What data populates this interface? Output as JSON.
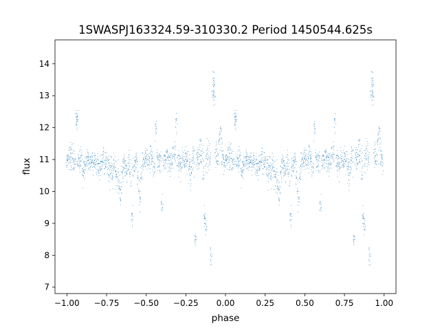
{
  "chart_data": {
    "type": "scatter",
    "title": "1SWASPJ163324.59-310330.2 Period 1450544.625s",
    "xlabel": "phase",
    "ylabel": "flux",
    "xlim": [
      -1.075,
      1.075
    ],
    "ylim": [
      6.8,
      14.75
    ],
    "x_ticks": [
      -1.0,
      -0.75,
      -0.5,
      -0.25,
      0.0,
      0.25,
      0.5,
      0.75,
      1.0
    ],
    "x_tick_labels": [
      "−1.00",
      "−0.75",
      "−0.50",
      "−0.25",
      "0.00",
      "0.25",
      "0.50",
      "0.75",
      "1.00"
    ],
    "y_ticks": [
      7,
      8,
      9,
      10,
      11,
      12,
      13,
      14
    ],
    "y_tick_labels": [
      "7",
      "8",
      "9",
      "10",
      "11",
      "12",
      "13",
      "14"
    ],
    "grid": false,
    "legend": "none",
    "point_color": "#1f77b4",
    "series": [
      {
        "phase_period": 1.0,
        "points": [
          [
            0.0,
            10.95,
            0.35
          ],
          [
            0.01,
            11.0,
            0.35
          ],
          [
            0.02,
            11.05,
            0.4
          ],
          [
            0.03,
            11.1,
            0.45
          ],
          [
            0.04,
            11.0,
            0.4
          ],
          [
            0.05,
            10.9,
            0.35
          ],
          [
            0.06,
            12.2,
            0.3
          ],
          [
            0.065,
            12.3,
            0.2
          ],
          [
            0.07,
            11.0,
            0.3
          ],
          [
            0.08,
            10.9,
            0.3
          ],
          [
            0.09,
            11.1,
            0.35
          ],
          [
            0.1,
            10.6,
            0.3
          ],
          [
            0.11,
            10.8,
            0.3
          ],
          [
            0.12,
            10.9,
            0.25
          ],
          [
            0.13,
            11.0,
            0.3
          ],
          [
            0.14,
            11.0,
            0.3
          ],
          [
            0.15,
            10.9,
            0.25
          ],
          [
            0.16,
            11.0,
            0.25
          ],
          [
            0.17,
            10.8,
            0.3
          ],
          [
            0.18,
            11.0,
            0.3
          ],
          [
            0.19,
            10.9,
            0.35
          ],
          [
            0.2,
            10.7,
            0.35
          ],
          [
            0.21,
            10.8,
            0.35
          ],
          [
            0.22,
            10.9,
            0.3
          ],
          [
            0.23,
            11.0,
            0.3
          ],
          [
            0.24,
            10.8,
            0.3
          ],
          [
            0.25,
            10.9,
            0.35
          ],
          [
            0.26,
            10.7,
            0.4
          ],
          [
            0.27,
            10.6,
            0.5
          ],
          [
            0.28,
            10.8,
            0.4
          ],
          [
            0.29,
            10.5,
            0.4
          ],
          [
            0.3,
            10.9,
            0.35
          ],
          [
            0.31,
            10.6,
            0.45
          ],
          [
            0.32,
            10.4,
            0.5
          ],
          [
            0.33,
            10.2,
            0.4
          ],
          [
            0.34,
            9.9,
            0.3
          ],
          [
            0.35,
            10.6,
            0.45
          ],
          [
            0.36,
            10.9,
            0.35
          ],
          [
            0.37,
            10.8,
            0.3
          ],
          [
            0.38,
            10.7,
            0.3
          ],
          [
            0.39,
            10.9,
            0.3
          ],
          [
            0.4,
            10.6,
            0.35
          ],
          [
            0.41,
            9.2,
            0.25
          ],
          [
            0.42,
            10.8,
            0.3
          ],
          [
            0.43,
            10.9,
            0.3
          ],
          [
            0.44,
            11.0,
            0.3
          ],
          [
            0.45,
            10.3,
            0.3
          ],
          [
            0.46,
            9.8,
            0.35
          ],
          [
            0.47,
            10.5,
            0.35
          ],
          [
            0.48,
            10.9,
            0.3
          ],
          [
            0.49,
            11.0,
            0.3
          ],
          [
            0.5,
            11.1,
            0.35
          ],
          [
            0.51,
            11.0,
            0.3
          ],
          [
            0.52,
            10.9,
            0.3
          ],
          [
            0.53,
            11.2,
            0.4
          ],
          [
            0.54,
            11.0,
            0.35
          ],
          [
            0.55,
            10.8,
            0.3
          ],
          [
            0.56,
            12.0,
            0.3
          ],
          [
            0.57,
            11.0,
            0.3
          ],
          [
            0.58,
            10.9,
            0.3
          ],
          [
            0.59,
            11.0,
            0.35
          ],
          [
            0.6,
            9.6,
            0.25
          ],
          [
            0.61,
            10.9,
            0.3
          ],
          [
            0.62,
            11.0,
            0.3
          ],
          [
            0.63,
            11.2,
            0.35
          ],
          [
            0.64,
            10.9,
            0.3
          ],
          [
            0.65,
            11.0,
            0.3
          ],
          [
            0.66,
            11.0,
            0.35
          ],
          [
            0.67,
            11.1,
            0.35
          ],
          [
            0.68,
            11.3,
            0.35
          ],
          [
            0.69,
            12.2,
            0.35
          ],
          [
            0.7,
            11.0,
            0.35
          ],
          [
            0.71,
            10.9,
            0.3
          ],
          [
            0.72,
            10.8,
            0.35
          ],
          [
            0.73,
            11.0,
            0.35
          ],
          [
            0.74,
            10.9,
            0.3
          ],
          [
            0.75,
            11.0,
            0.35
          ],
          [
            0.76,
            10.9,
            0.35
          ],
          [
            0.77,
            10.7,
            0.4
          ],
          [
            0.78,
            10.6,
            0.4
          ],
          [
            0.79,
            10.9,
            0.45
          ],
          [
            0.8,
            11.0,
            0.45
          ],
          [
            0.81,
            8.5,
            0.2
          ],
          [
            0.82,
            11.1,
            0.4
          ],
          [
            0.83,
            11.0,
            0.45
          ],
          [
            0.84,
            11.3,
            0.45
          ],
          [
            0.85,
            11.2,
            0.5
          ],
          [
            0.86,
            10.8,
            0.5
          ],
          [
            0.87,
            9.2,
            0.3
          ],
          [
            0.875,
            8.9,
            0.25
          ],
          [
            0.88,
            10.9,
            0.4
          ],
          [
            0.89,
            11.2,
            0.45
          ],
          [
            0.9,
            11.1,
            0.45
          ],
          [
            0.91,
            8.0,
            0.25
          ],
          [
            0.92,
            13.0,
            0.35
          ],
          [
            0.925,
            13.5,
            0.25
          ],
          [
            0.93,
            13.1,
            0.3
          ],
          [
            0.94,
            11.2,
            0.45
          ],
          [
            0.95,
            11.0,
            0.4
          ],
          [
            0.96,
            11.5,
            0.45
          ],
          [
            0.97,
            11.8,
            0.35
          ],
          [
            0.98,
            11.2,
            0.4
          ],
          [
            0.99,
            11.0,
            0.4
          ]
        ]
      }
    ]
  }
}
